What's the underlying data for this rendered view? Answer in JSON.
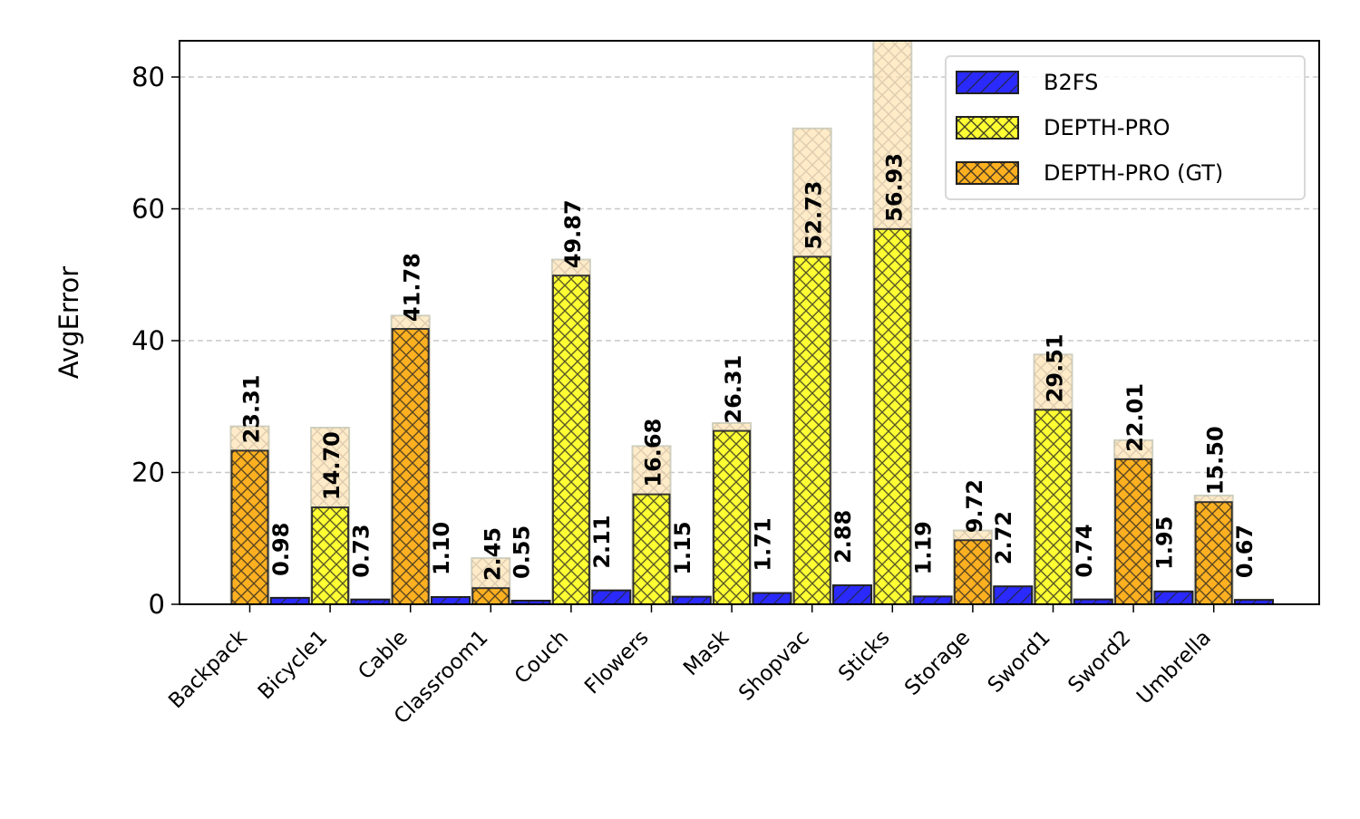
{
  "chart_data": {
    "type": "bar",
    "ylabel": "AvgError",
    "xlabel": "",
    "ylim": [
      0,
      85.5
    ],
    "yticks": [
      0,
      20,
      40,
      60,
      80
    ],
    "grid": "y-dashed",
    "legend_position": "top-right",
    "categories": [
      "Backpack",
      "Bicycle1",
      "Cable",
      "Classroom1",
      "Couch",
      "Flowers",
      "Mask",
      "Shopvac",
      "Sticks",
      "Storage",
      "Sword1",
      "Sword2",
      "Umbrella"
    ],
    "series": [
      {
        "name": "B2FS",
        "color": "#2a2aff",
        "hatch": "diagonal",
        "values": [
          0.98,
          0.73,
          1.1,
          0.55,
          2.11,
          1.15,
          1.71,
          2.88,
          1.19,
          2.72,
          0.74,
          1.95,
          0.67
        ],
        "labels": [
          "0.98",
          "0.73",
          "1.10",
          "0.55",
          "2.11",
          "1.15",
          "1.71",
          "2.88",
          "1.19",
          "2.72",
          "0.74",
          "1.95",
          "0.67"
        ]
      },
      {
        "name": "DEPTH-PRO",
        "color": "#ffff33",
        "hatch": "crosshatch",
        "values": [
          null,
          14.7,
          null,
          null,
          49.87,
          16.68,
          26.31,
          52.73,
          56.93,
          null,
          29.51,
          null,
          null
        ],
        "labels": [
          null,
          "14.70",
          null,
          null,
          "49.87",
          "16.68",
          "26.31",
          "52.73",
          "56.93",
          null,
          "29.51",
          null,
          null
        ]
      },
      {
        "name": "DEPTH-PRO (GT)",
        "color": "#ffb020",
        "hatch": "crosshatch",
        "values": [
          23.31,
          null,
          41.78,
          2.45,
          null,
          null,
          null,
          null,
          null,
          9.72,
          null,
          22.01,
          15.5
        ],
        "labels": [
          "23.31",
          null,
          "41.78",
          "2.45",
          null,
          null,
          null,
          null,
          null,
          "9.72",
          null,
          "22.01",
          "15.50"
        ]
      }
    ],
    "background_bars": {
      "color": "#ffe2b0",
      "values": [
        27.0,
        26.8,
        43.8,
        7.0,
        52.3,
        24.0,
        27.5,
        72.2,
        86.0,
        11.2,
        37.9,
        24.9,
        16.5
      ]
    }
  }
}
